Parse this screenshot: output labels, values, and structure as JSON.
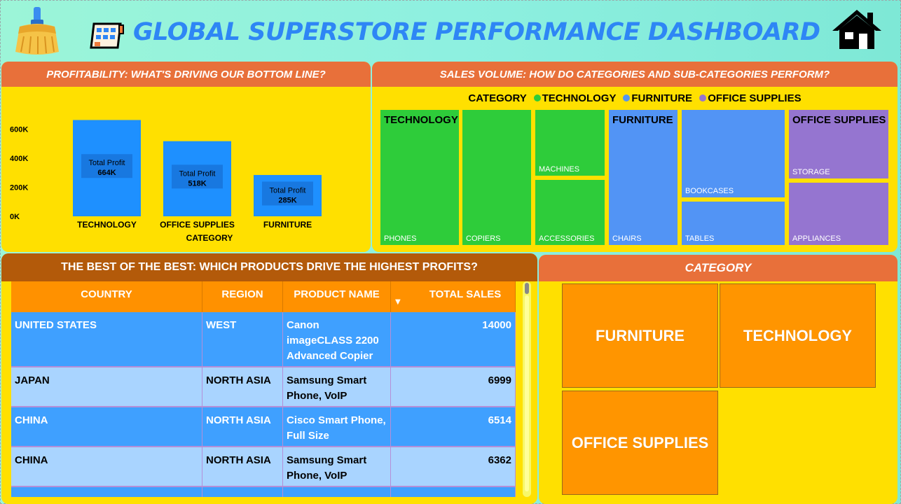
{
  "header": {
    "title": "GLOBAL SUPERSTORE PERFORMANCE DASHBOARD",
    "icons": [
      "broom-icon",
      "building-icon",
      "home-icon"
    ]
  },
  "profit_panel": {
    "title": "PROFITABILITY: WHAT'S DRIVING OUR BOTTOM LINE?",
    "tooltip_label": "Total Profit",
    "chart_data": {
      "type": "bar",
      "categories": [
        "TECHNOLOGY",
        "OFFICE SUPPLIES",
        "FURNITURE"
      ],
      "values": [
        664,
        518,
        285
      ],
      "value_labels": [
        "664K",
        "518K",
        "285K"
      ],
      "y_ticks": [
        "0K",
        "200K",
        "400K",
        "600K"
      ],
      "ylim": [
        0,
        700
      ],
      "xlabel": "CATEGORY",
      "ylabel": "",
      "color": "#1e90ff"
    }
  },
  "sales_panel": {
    "title": "SALES VOLUME: HOW DO CATEGORIES AND SUB-CATEGORIES PERFORM?",
    "legend": {
      "title": "CATEGORY",
      "items": [
        {
          "label": "TECHNOLOGY",
          "color": "#2ecc3a"
        },
        {
          "label": "FURNITURE",
          "color": "#5294f5"
        },
        {
          "label": "OFFICE SUPPLIES",
          "color": "#9575d0"
        }
      ]
    },
    "tiles": {
      "technology": "TECHNOLOGY",
      "furniture": "FURNITURE",
      "office_supplies": "OFFICE SUPPLIES",
      "phones": "PHONES",
      "copiers": "COPIERS",
      "machines": "MACHINES",
      "accessories": "ACCESSORIES",
      "chairs": "CHAIRS",
      "bookcases": "BOOKCASES",
      "tables": "TABLES",
      "storage": "STORAGE",
      "appliances": "APPLIANCES"
    }
  },
  "best_panel": {
    "title": "THE BEST OF THE BEST: WHICH PRODUCTS DRIVE THE HIGHEST PROFITS?",
    "columns": [
      "COUNTRY",
      "REGION",
      "PRODUCT NAME",
      "TOTAL SALES"
    ],
    "rows": [
      {
        "country": "UNITED STATES",
        "region": "WEST",
        "product": "Canon imageCLASS 2200 Advanced Copier",
        "sales": "14000"
      },
      {
        "country": "JAPAN",
        "region": "NORTH ASIA",
        "product": "Samsung Smart Phone, VoIP",
        "sales": "6999"
      },
      {
        "country": "CHINA",
        "region": "NORTH ASIA",
        "product": "Cisco Smart Phone, Full Size",
        "sales": "6514"
      },
      {
        "country": "CHINA",
        "region": "NORTH ASIA",
        "product": "Samsung Smart Phone, VoIP",
        "sales": "6362"
      }
    ]
  },
  "category_slicer": {
    "title": "CATEGORY",
    "options": [
      "FURNITURE",
      "TECHNOLOGY",
      "OFFICE SUPPLIES"
    ]
  }
}
